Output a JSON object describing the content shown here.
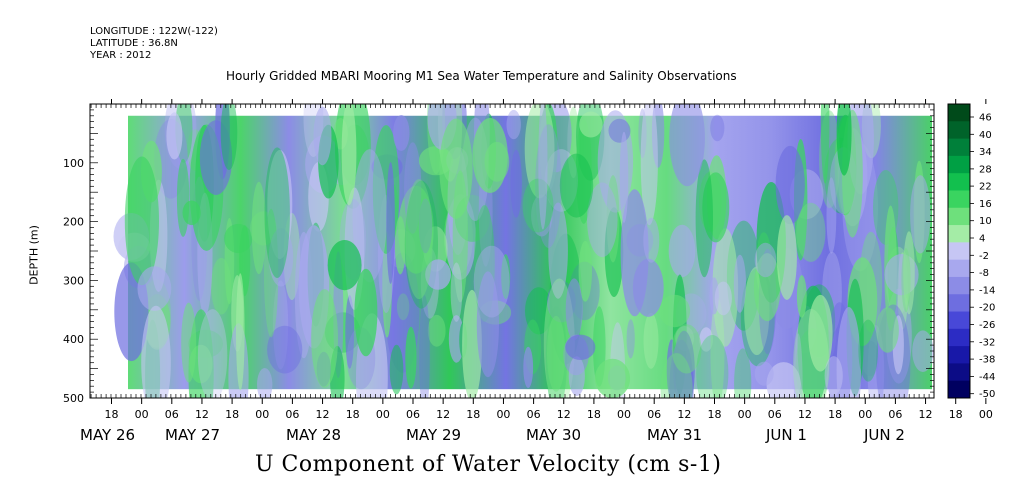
{
  "header": {
    "longitude": "LONGITUDE : 122W(-122)",
    "latitude": "LATITUDE : 36.8N",
    "year": "YEAR : 2012"
  },
  "chart_data": {
    "type": "heatmap",
    "title": "Hourly Gridded MBARI Mooring M1 Sea Water Temperature and Salinity Observations",
    "xlabel": "U Component of Water Velocity (cm s-1)",
    "ylabel": "DEPTH (m)",
    "ylim": [
      500,
      0
    ],
    "yticks": [
      100,
      200,
      300,
      400,
      500
    ],
    "x_hour_ticks": [
      "18",
      "00",
      "06",
      "12",
      "18",
      "00",
      "06",
      "12",
      "18",
      "00",
      "06",
      "12",
      "18",
      "00",
      "06",
      "12",
      "18",
      "00",
      "06",
      "12",
      "18",
      "00",
      "06",
      "12",
      "18",
      "00",
      "06",
      "12",
      "18",
      "00",
      "06",
      "12"
    ],
    "x_date_labels": [
      "MAY 26",
      "MAY 27",
      "MAY 28",
      "MAY 29",
      "MAY 30",
      "MAY 31",
      "JUN  1",
      "JUN  2"
    ],
    "colorbar_levels": [
      46,
      40,
      34,
      28,
      22,
      16,
      10,
      4,
      -2,
      -8,
      -14,
      -20,
      -26,
      -32,
      -38,
      -44,
      -50
    ],
    "colorbar_colors": [
      "#004a1a",
      "#00632a",
      "#00803a",
      "#00a044",
      "#12c04e",
      "#3ad460",
      "#6ee07c",
      "#a4eca6",
      "#c6c6f4",
      "#a8a8ee",
      "#8c8ce6",
      "#6e6ee0",
      "#4848d8",
      "#2c2cc4",
      "#1818a8",
      "#0c0c86",
      "#000060"
    ],
    "data_extent_depth": [
      20,
      485
    ]
  }
}
